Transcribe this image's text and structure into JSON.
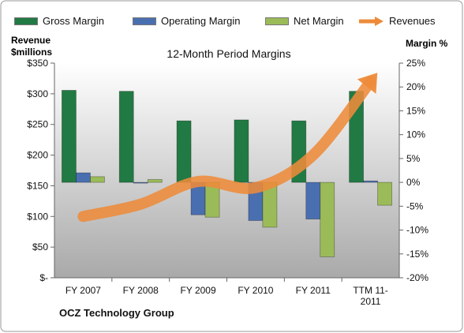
{
  "legend": {
    "gross_margin": "Gross Margin",
    "operating_margin": "Operating Margin",
    "net_margin": "Net Margin",
    "revenues": "Revenues"
  },
  "axes": {
    "left_title_line1": "Revenue",
    "left_title_line2": "$millions",
    "right_title": "Margin %"
  },
  "company": "OCZ Technology Group",
  "colors": {
    "gross_margin": "#217a43",
    "operating_margin": "#4a6fb0",
    "net_margin": "#9bbb59",
    "revenues": "#ed8b3a",
    "plot_top": "#ffffff",
    "plot_bottom": "#a9a9a9"
  },
  "chart_data": {
    "type": "bar",
    "title": "12-Month Period Margins",
    "categories": [
      "FY 2007",
      "FY 2008",
      "FY 2009",
      "FY 2010",
      "FY 2011",
      "TTM 11-2011"
    ],
    "category_lines": [
      [
        "FY 2007"
      ],
      [
        "FY 2008"
      ],
      [
        "FY 2009"
      ],
      [
        "FY 2010"
      ],
      [
        "FY 2011"
      ],
      [
        "TTM 11-",
        "2011"
      ]
    ],
    "series": [
      {
        "name": "Gross Margin",
        "axis": "right",
        "values": [
          19.3,
          19.1,
          12.9,
          13.1,
          12.9,
          19.1
        ]
      },
      {
        "name": "Operating Margin",
        "axis": "right",
        "values": [
          2.0,
          -0.1,
          -6.8,
          -8.0,
          -7.7,
          0.3
        ]
      },
      {
        "name": "Net Margin",
        "axis": "right",
        "values": [
          1.2,
          0.6,
          -7.3,
          -9.4,
          -15.6,
          -4.8
        ]
      },
      {
        "name": "Revenues",
        "type": "line",
        "axis": "left",
        "values": [
          100,
          120,
          157,
          147,
          200,
          320
        ]
      }
    ],
    "y_left": {
      "label": "Revenue $millions",
      "ticks": [
        "$-",
        "$50",
        "$100",
        "$150",
        "$200",
        "$250",
        "$300",
        "$350"
      ],
      "lim": [
        0,
        350
      ]
    },
    "y_right": {
      "label": "Margin %",
      "ticks": [
        "-20%",
        "-15%",
        "-10%",
        "-5%",
        "0%",
        "5%",
        "10%",
        "15%",
        "20%",
        "25%"
      ],
      "lim": [
        -20,
        25
      ]
    },
    "grid": false,
    "legend_position": "top"
  }
}
